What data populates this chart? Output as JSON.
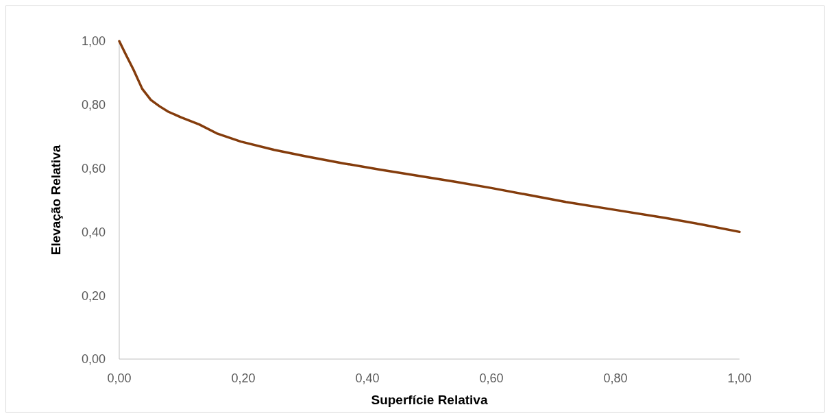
{
  "chart_data": {
    "type": "line",
    "xlabel": "Superfície Relativa",
    "ylabel": "Elevação Relativa",
    "xlim": [
      0,
      1
    ],
    "ylim": [
      0,
      1
    ],
    "xticks": [
      {
        "value": 0,
        "label": "0,00"
      },
      {
        "value": 0.2,
        "label": "0,20"
      },
      {
        "value": 0.4,
        "label": "0,40"
      },
      {
        "value": 0.6,
        "label": "0,60"
      },
      {
        "value": 0.8,
        "label": "0,80"
      },
      {
        "value": 1,
        "label": "1,00"
      }
    ],
    "yticks": [
      {
        "value": 0,
        "label": "0,00"
      },
      {
        "value": 0.2,
        "label": "0,20"
      },
      {
        "value": 0.4,
        "label": "0,40"
      },
      {
        "value": 0.6,
        "label": "0,60"
      },
      {
        "value": 0.8,
        "label": "0,80"
      },
      {
        "value": 1,
        "label": "1,00"
      }
    ],
    "grid": false,
    "series": [
      {
        "color": "#843c0c",
        "x": [
          0,
          0.01,
          0.023,
          0.037,
          0.051,
          0.065,
          0.079,
          0.1,
          0.129,
          0.157,
          0.196,
          0.25,
          0.3,
          0.36,
          0.42,
          0.48,
          0.54,
          0.6,
          0.66,
          0.72,
          0.8,
          0.88,
          0.94,
          1
        ],
        "values": [
          1,
          0.96,
          0.91,
          0.85,
          0.815,
          0.795,
          0.778,
          0.76,
          0.738,
          0.71,
          0.684,
          0.658,
          0.638,
          0.616,
          0.596,
          0.577,
          0.558,
          0.538,
          0.516,
          0.494,
          0.469,
          0.444,
          0.423,
          0.4
        ]
      }
    ]
  }
}
